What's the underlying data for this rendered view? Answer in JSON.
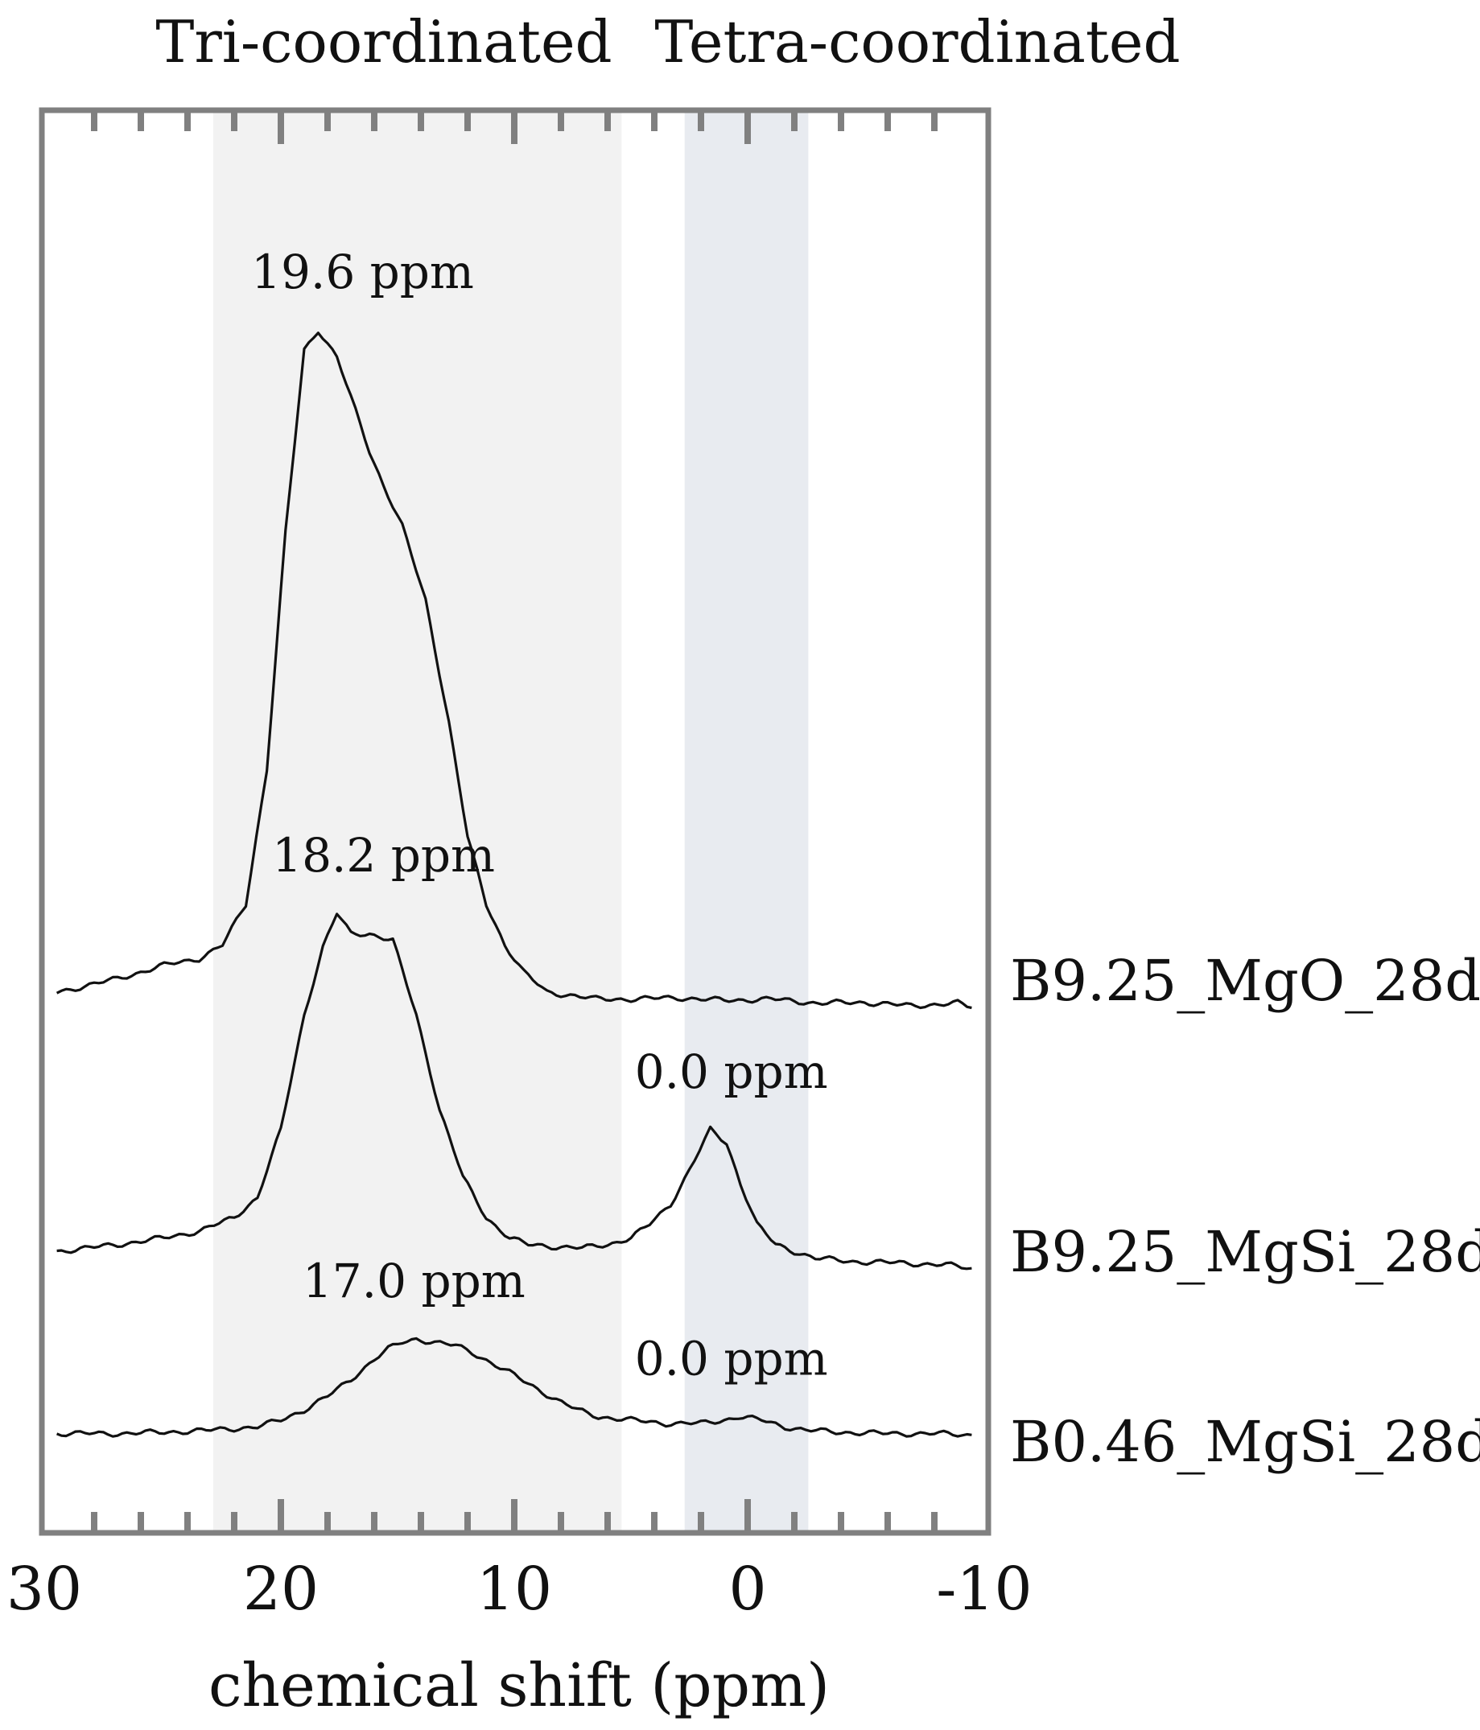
{
  "chart_data": {
    "type": "line",
    "xlabel": "chemical shift (ppm)",
    "x_reversed": true,
    "xlim": [
      30,
      -10
    ],
    "xticks": [
      "30",
      "20",
      "10",
      "0",
      "-10"
    ],
    "xtick_values": [
      30,
      20,
      10,
      0,
      -10
    ],
    "shaded_regions": [
      {
        "label": "Tri-coordinated",
        "range": [
          22.9,
          5.4
        ],
        "color": "#f2f2f2"
      },
      {
        "label": "Tetra-coordinated",
        "range": [
          2.7,
          -2.6
        ],
        "color": "#e8ebf0"
      }
    ],
    "series": [
      {
        "name": "B9.25_MgO_28d",
        "x": [
          29.6,
          27,
          25,
          23.5,
          22.5,
          21.5,
          20.6,
          19.8,
          19.0,
          18.4,
          17.6,
          16.8,
          16.2,
          15.6,
          14.8,
          13.8,
          12.8,
          12.0,
          11.2,
          10.4,
          9.6,
          8.6,
          7.4,
          6.5,
          5,
          3,
          1,
          -1,
          -3,
          -5,
          -7,
          -9,
          -9.6
        ],
        "y": [
          0.02,
          0.04,
          0.06,
          0.07,
          0.09,
          0.15,
          0.35,
          0.7,
          0.97,
          1.0,
          0.96,
          0.88,
          0.82,
          0.77,
          0.71,
          0.6,
          0.42,
          0.25,
          0.15,
          0.09,
          0.05,
          0.02,
          0.015,
          0.01,
          0.01,
          0.012,
          0.008,
          0.01,
          0.004,
          0.005,
          0.0,
          0.004,
          -0.003
        ],
        "peak_label": "19.6 ppm"
      },
      {
        "name": "B9.25_MgSi_28d",
        "x": [
          29.6,
          27,
          25,
          23.5,
          22,
          21,
          20,
          19,
          18.2,
          17.6,
          17,
          16.2,
          15.2,
          14.2,
          13.2,
          12.2,
          11.2,
          10.2,
          9.4,
          8.2,
          7.1,
          6,
          5,
          4.2,
          3.3,
          2.5,
          1.6,
          0.9,
          0.3,
          -0.4,
          -1.2,
          -2.0,
          -2.9,
          -4.5,
          -6.5,
          -8.5,
          -9.6
        ],
        "y": [
          0.02,
          0.03,
          0.04,
          0.05,
          0.07,
          0.1,
          0.2,
          0.37,
          0.47,
          0.52,
          0.49,
          0.49,
          0.48,
          0.37,
          0.23,
          0.13,
          0.07,
          0.04,
          0.03,
          0.027,
          0.025,
          0.03,
          0.04,
          0.06,
          0.09,
          0.14,
          0.2,
          0.18,
          0.12,
          0.06,
          0.03,
          0.02,
          0.01,
          0.005,
          0.003,
          0.0,
          -0.005
        ],
        "peak_labels": [
          "18.2 ppm",
          "0.0 ppm"
        ]
      },
      {
        "name": "B0.46_MgSi_28d",
        "x": [
          29.6,
          27,
          25,
          23,
          21,
          20,
          19,
          18,
          17,
          16,
          15.4,
          14.8,
          14.2,
          13.4,
          12.5,
          11.8,
          11.0,
          10.2,
          9.2,
          8.2,
          7.3,
          6.4,
          5,
          3.5,
          2,
          1.0,
          0.4,
          -0.6,
          -1.6,
          -2.5,
          -4,
          -6,
          -8,
          -9.6
        ],
        "y": [
          0.01,
          0.01,
          0.012,
          0.015,
          0.02,
          0.03,
          0.045,
          0.065,
          0.09,
          0.12,
          0.135,
          0.145,
          0.15,
          0.145,
          0.14,
          0.13,
          0.115,
          0.1,
          0.08,
          0.06,
          0.045,
          0.035,
          0.03,
          0.025,
          0.025,
          0.03,
          0.035,
          0.03,
          0.02,
          0.015,
          0.012,
          0.01,
          0.01,
          0.008
        ],
        "peak_labels": [
          "17.0 ppm",
          "0.0 ppm"
        ]
      }
    ],
    "peak_annotations": [
      {
        "text": "19.6 ppm",
        "x": 16.5,
        "series": 0
      },
      {
        "text": "18.2 ppm",
        "x": 15.6,
        "series": 1
      },
      {
        "text": "0.0 ppm",
        "x": 0.7,
        "series": 1
      },
      {
        "text": "17.0 ppm",
        "x": 14.3,
        "series": 2
      },
      {
        "text": "0.0 ppm",
        "x": 0.7,
        "series": 2
      }
    ],
    "grid": false,
    "legend": "none"
  }
}
